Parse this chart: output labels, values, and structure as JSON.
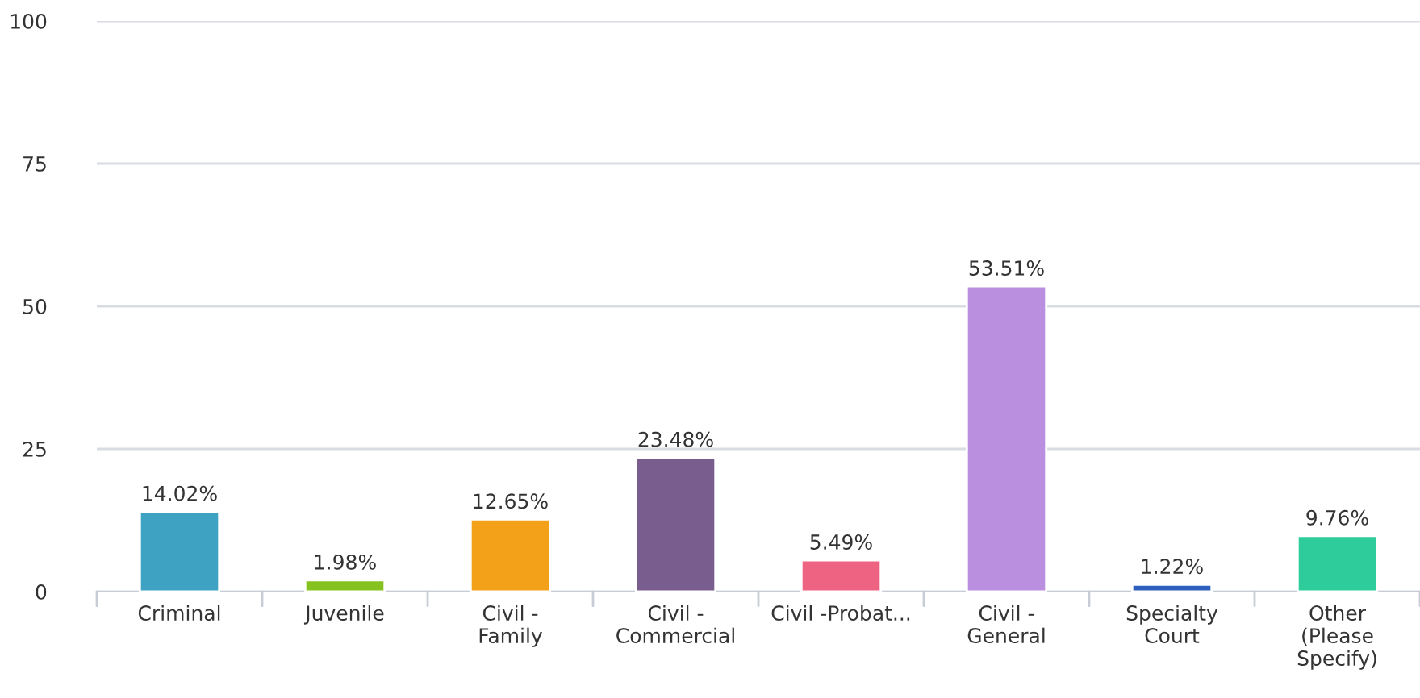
{
  "chart_data": {
    "type": "bar",
    "categories": [
      "Criminal",
      "Juvenile",
      "Civil -\nFamily",
      "Civil -\nCommercial",
      "Civil -Probat...",
      "Civil -\nGeneral",
      "Specialty\nCourt",
      "Other\n(Please\nSpecify)"
    ],
    "values": [
      14.02,
      1.98,
      12.65,
      23.48,
      5.49,
      53.51,
      1.22,
      9.76
    ],
    "value_labels": [
      "14.02%",
      "1.98%",
      "12.65%",
      "23.48%",
      "5.49%",
      "53.51%",
      "1.22%",
      "9.76%"
    ],
    "colors": [
      "#3ea3c2",
      "#85c21f",
      "#f4a11a",
      "#7a5d8f",
      "#ee6282",
      "#bb8fe0",
      "#2e5fbf",
      "#2ecc9a"
    ],
    "ylim": [
      0,
      100
    ],
    "yticks": [
      0,
      25,
      50,
      75,
      100
    ],
    "grid": "y"
  }
}
